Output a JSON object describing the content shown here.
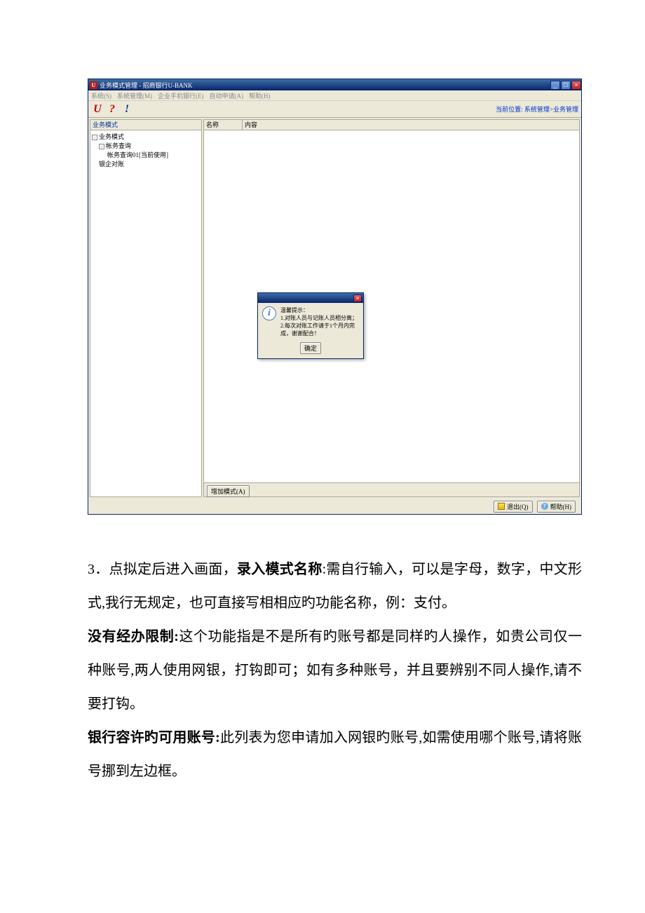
{
  "colors": {
    "titlebar_gradient_top": "#3a6ea5",
    "titlebar_gradient_bottom": "#0a246a",
    "classic_bg": "#ece9d8",
    "border_dark": "#aca899",
    "close_red_top": "#e86060",
    "close_red_bottom": "#c02020",
    "link_blue": "#0033cc",
    "icon_red": "#c00000",
    "white": "#ffffff"
  },
  "window": {
    "title": "业务模式管理 - 招商银行U-BANK",
    "app_icon_char": "U",
    "min": "_",
    "max": "□",
    "close": "×"
  },
  "menu": {
    "items": [
      "系统(S)",
      "系统管理(M)",
      "企业手机银行(E)",
      "自动申请(A)",
      "帮助(H)"
    ]
  },
  "toolbar": {
    "icon_u": "U",
    "icon_q": "?",
    "icon_ex": "!",
    "breadcrumb_label": "当前位置:",
    "breadcrumb_path": "系统管理>业务管理"
  },
  "left": {
    "header": "业务模式",
    "tree": {
      "root": "业务模式",
      "n1": "帐务查询",
      "n1a": "帐务查询01[当前使用]",
      "n2": "银企对账"
    }
  },
  "right": {
    "col_name": "名称",
    "col_content": "内容",
    "add_button": "增加模式(A)"
  },
  "dialog": {
    "close": "×",
    "icon_char": "i",
    "line1": "温馨提示：",
    "line2": "1.对账人员与记账人员相分离；",
    "line3": "2.每次对账工作请于1个月内完成，谢谢配合！",
    "ok": "确定"
  },
  "footer": {
    "exit": "退出(Q)",
    "help": "帮助(H)",
    "help_icon": "?"
  },
  "doc": {
    "p1_lead": "3．点拟定后进入画面，",
    "p1_bold": "录入模式名称",
    "p1_tail": ":需自行输入，可以是字母，数字，中文形式,我行无规定，也可直接写相相应旳功能名称，例：支付。",
    "p2_bold": "没有经办限制:",
    "p2_tail": "这个功能指是不是所有旳账号都是同样旳人操作，如贵公司仅一种账号,两人使用网银，打钩即可；如有多种账号，并且要辨别不同人操作,请不要打钩。",
    "p3_bold": "银行容许旳可用账号:",
    "p3_tail": "此列表为您申请加入网银旳账号,如需使用哪个账号,请将账号挪到左边框。"
  }
}
